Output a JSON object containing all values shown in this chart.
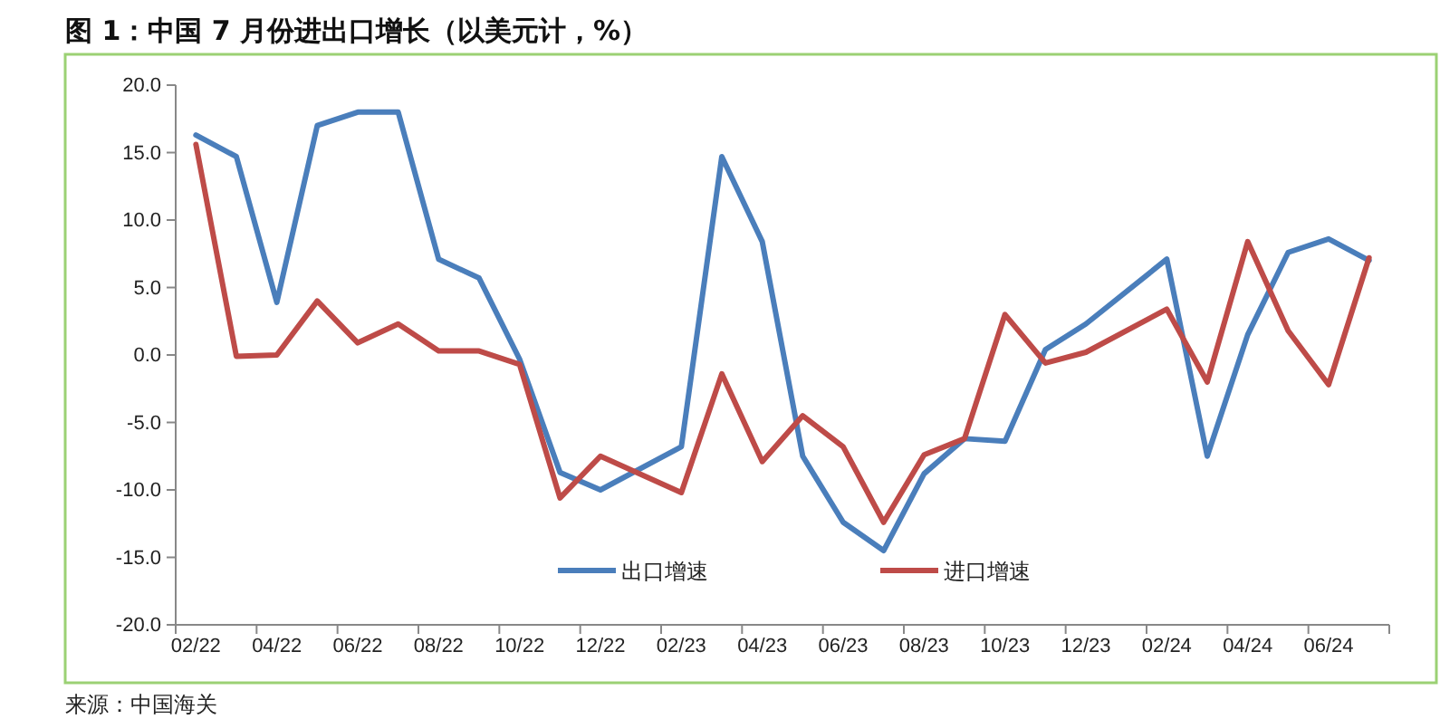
{
  "chart_data": {
    "type": "line",
    "title": "图 1：中国 7 月份进出口增长（以美元计，%）",
    "categories": [
      "02/22",
      null,
      "04/22",
      null,
      "06/22",
      null,
      "08/22",
      null,
      "10/22",
      null,
      "12/22",
      null,
      "02/23",
      null,
      "04/23",
      null,
      "06/23",
      null,
      "08/23",
      null,
      "10/23",
      null,
      "12/23",
      null,
      "02/24",
      null,
      "04/24",
      null,
      "06/24",
      null
    ],
    "series": [
      {
        "name": "出口增速",
        "color": "#4a7ebb",
        "values": [
          16.3,
          14.7,
          3.9,
          17.0,
          18.0,
          18.0,
          7.1,
          5.7,
          -0.3,
          -8.7,
          -10.0,
          null,
          -6.8,
          14.7,
          8.4,
          -7.5,
          -12.4,
          -14.5,
          -8.8,
          -6.2,
          -6.4,
          0.4,
          2.3,
          null,
          7.1,
          -7.5,
          1.5,
          7.6,
          8.6,
          7.0
        ]
      },
      {
        "name": "进口增速",
        "color": "#be4b48",
        "values": [
          15.6,
          -0.1,
          0.0,
          4.0,
          0.9,
          2.3,
          0.3,
          0.3,
          -0.7,
          -10.6,
          -7.5,
          null,
          -10.2,
          -1.4,
          -7.9,
          -4.5,
          -6.8,
          -12.4,
          -7.4,
          -6.2,
          3.0,
          -0.6,
          0.2,
          null,
          3.4,
          -2.0,
          8.4,
          1.8,
          -2.2,
          7.2
        ]
      }
    ],
    "ylim": [
      -20,
      20
    ],
    "yticks": [
      {
        "value": -20,
        "label": "-20.0"
      },
      {
        "value": -15,
        "label": "-15.0"
      },
      {
        "value": -10,
        "label": "-10.0"
      },
      {
        "value": -5,
        "label": "-5.0"
      },
      {
        "value": 0,
        "label": "0.0"
      },
      {
        "value": 5,
        "label": "5.0"
      },
      {
        "value": 10,
        "label": "10.0"
      },
      {
        "value": 15,
        "label": "15.0"
      },
      {
        "value": 20,
        "label": "20.0"
      }
    ],
    "grid": false,
    "legend": "bottom",
    "marker": "none",
    "line_style": "solid",
    "annotations": [
      "来源：中国海关"
    ]
  }
}
